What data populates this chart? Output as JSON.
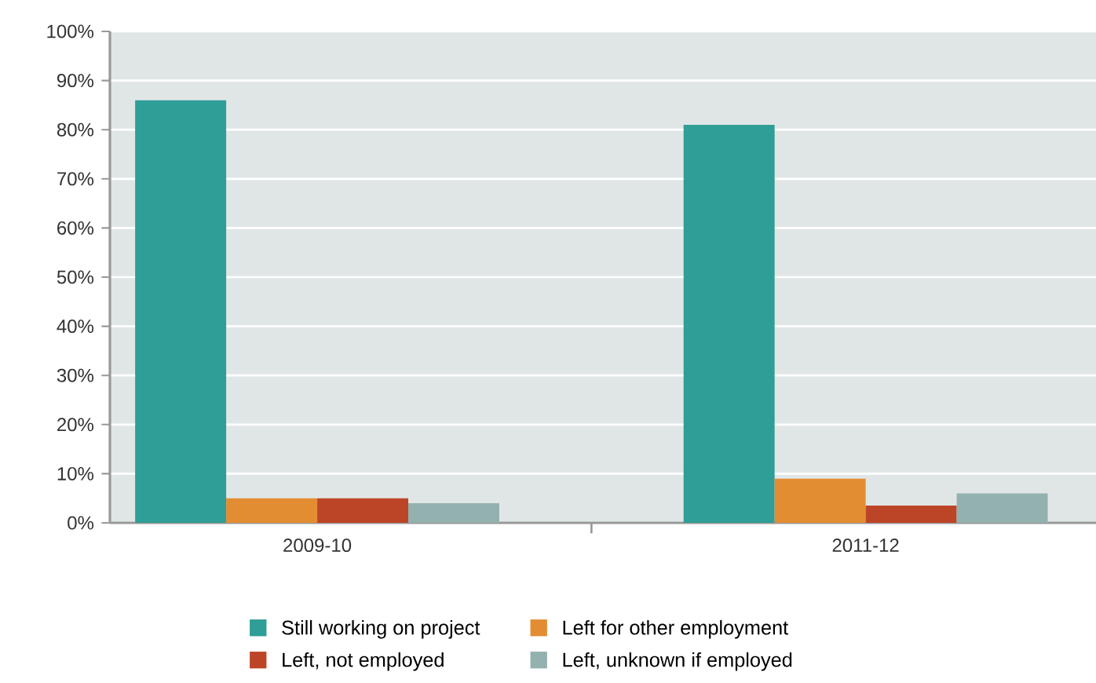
{
  "chart_data": {
    "type": "bar",
    "categories": [
      "2009-10",
      "2011-12"
    ],
    "series": [
      {
        "name": "Still working on project",
        "color": "#2e9e96",
        "values": [
          86,
          81
        ]
      },
      {
        "name": "Left for other employment",
        "color": "#e38d33",
        "values": [
          5,
          9
        ]
      },
      {
        "name": "Left, not employed",
        "color": "#bd4527",
        "values": [
          5,
          3.5
        ]
      },
      {
        "name": "Left, unknown if employed",
        "color": "#93b1af",
        "values": [
          4,
          6
        ]
      }
    ],
    "ylim": [
      0,
      100
    ],
    "yticks": [
      {
        "value": 0,
        "label": "0%"
      },
      {
        "value": 10,
        "label": "10%"
      },
      {
        "value": 20,
        "label": "20%"
      },
      {
        "value": 30,
        "label": "30%"
      },
      {
        "value": 40,
        "label": "40%"
      },
      {
        "value": 50,
        "label": "50%"
      },
      {
        "value": 60,
        "label": "60%"
      },
      {
        "value": 70,
        "label": "70%"
      },
      {
        "value": 80,
        "label": "80%"
      },
      {
        "value": 90,
        "label": "90%"
      },
      {
        "value": 100,
        "label": "100%"
      }
    ],
    "grid": "y",
    "legend": "bottom"
  }
}
